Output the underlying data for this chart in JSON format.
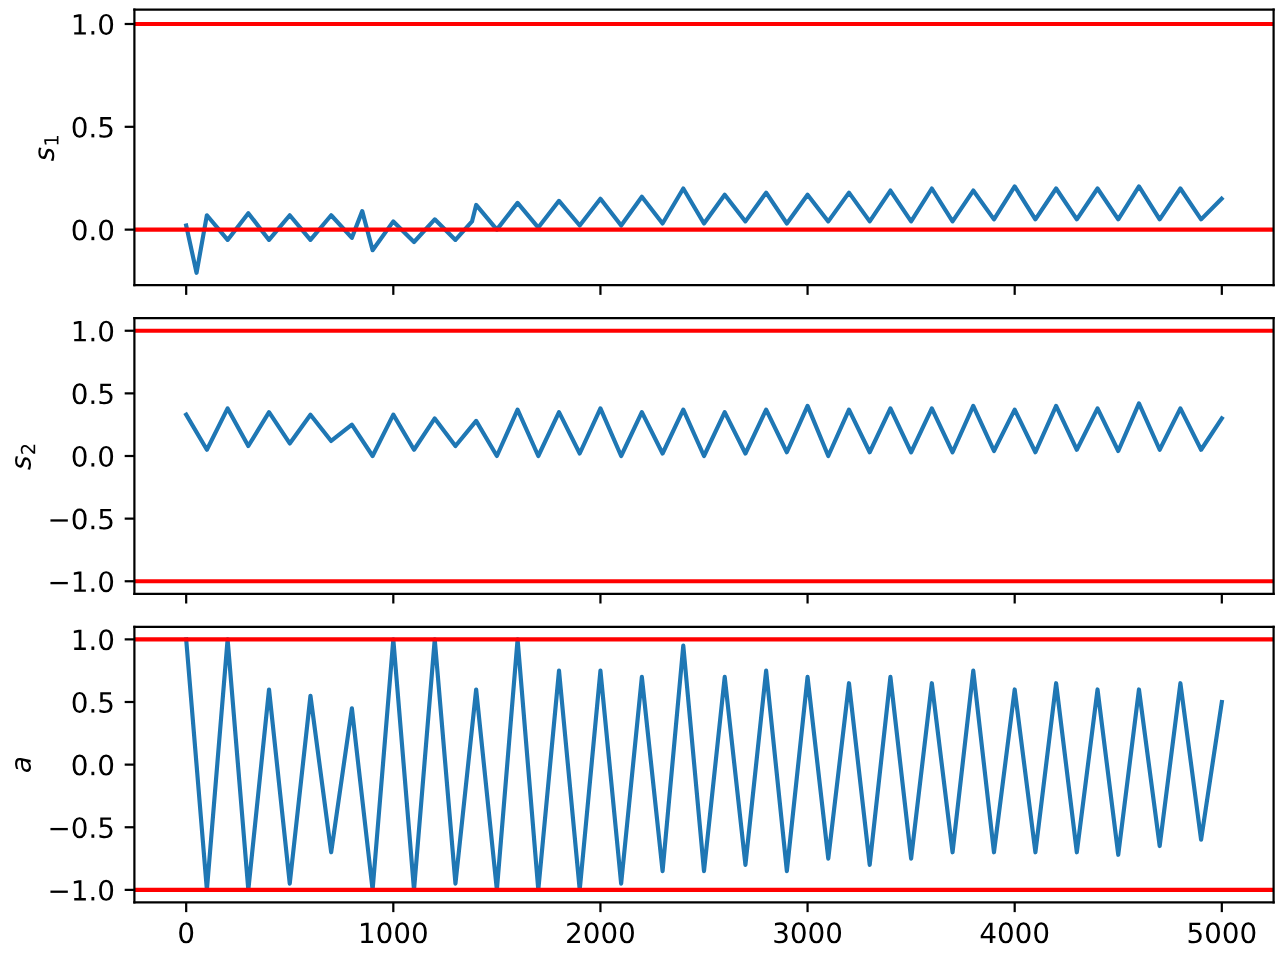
{
  "chart_data": [
    {
      "type": "line",
      "ylabel": "s$_{1}$",
      "xlim": [
        -250,
        5250
      ],
      "ylim": [
        -0.27,
        1.07
      ],
      "xticks": [
        0,
        1000,
        2000,
        3000,
        4000,
        5000
      ],
      "yticks": [
        {
          "value": 0,
          "label": "0.0"
        },
        {
          "value": 0.5,
          "label": "0.5"
        },
        {
          "value": 1,
          "label": "1.0"
        }
      ],
      "tick_labels": "y",
      "grid": false,
      "legend": false,
      "series": [
        {
          "color": "#1f77b4",
          "x": [
            0,
            50,
            100,
            200,
            300,
            400,
            500,
            600,
            700,
            800,
            850,
            900,
            1000,
            1100,
            1200,
            1300,
            1380,
            1400,
            1500,
            1600,
            1700,
            1800,
            1900,
            2000,
            2100,
            2200,
            2300,
            2400,
            2500,
            2600,
            2700,
            2800,
            2900,
            3000,
            3100,
            3200,
            3300,
            3400,
            3500,
            3600,
            3700,
            3800,
            3900,
            4000,
            4100,
            4200,
            4300,
            4400,
            4500,
            4600,
            4700,
            4800,
            4900,
            4999
          ],
          "values": [
            0.02,
            -0.21,
            0.07,
            -0.05,
            0.08,
            -0.05,
            0.07,
            -0.05,
            0.07,
            -0.04,
            0.09,
            -0.1,
            0.04,
            -0.06,
            0.05,
            -0.05,
            0.04,
            0.12,
            0.0,
            0.13,
            0.01,
            0.14,
            0.02,
            0.15,
            0.02,
            0.16,
            0.03,
            0.2,
            0.03,
            0.17,
            0.04,
            0.18,
            0.03,
            0.17,
            0.04,
            0.18,
            0.04,
            0.19,
            0.04,
            0.2,
            0.04,
            0.19,
            0.05,
            0.21,
            0.05,
            0.2,
            0.05,
            0.2,
            0.05,
            0.21,
            0.05,
            0.2,
            0.05,
            0.15
          ]
        }
      ],
      "ref_lines": [
        {
          "axis": "y",
          "value": 1,
          "color": "#ff0000"
        },
        {
          "axis": "y",
          "value": 0,
          "color": "#ff0000"
        }
      ]
    },
    {
      "type": "line",
      "ylabel": "s$_{2}$",
      "xlim": [
        -250,
        5250
      ],
      "ylim": [
        -1.1,
        1.1
      ],
      "xticks": [
        0,
        1000,
        2000,
        3000,
        4000,
        5000
      ],
      "yticks": [
        {
          "value": -1,
          "label": "−1.0"
        },
        {
          "value": -0.5,
          "label": "−0.5"
        },
        {
          "value": 0,
          "label": "0.0"
        },
        {
          "value": 0.5,
          "label": "0.5"
        },
        {
          "value": 1,
          "label": "1.0"
        }
      ],
      "tick_labels": "y",
      "grid": false,
      "legend": false,
      "series": [
        {
          "color": "#1f77b4",
          "x": [
            0,
            100,
            200,
            300,
            400,
            500,
            600,
            700,
            800,
            900,
            1000,
            1100,
            1200,
            1300,
            1400,
            1500,
            1600,
            1700,
            1800,
            1900,
            2000,
            2100,
            2200,
            2300,
            2400,
            2500,
            2600,
            2700,
            2800,
            2900,
            3000,
            3100,
            3200,
            3300,
            3400,
            3500,
            3600,
            3700,
            3800,
            3900,
            4000,
            4100,
            4200,
            4300,
            4400,
            4500,
            4600,
            4700,
            4800,
            4900,
            5000
          ],
          "values": [
            0.33,
            0.05,
            0.38,
            0.08,
            0.35,
            0.1,
            0.33,
            0.12,
            0.25,
            0.0,
            0.33,
            0.05,
            0.3,
            0.08,
            0.28,
            0.0,
            0.37,
            0.0,
            0.35,
            0.02,
            0.38,
            0.0,
            0.35,
            0.02,
            0.37,
            0.0,
            0.35,
            0.02,
            0.37,
            0.03,
            0.4,
            0.0,
            0.37,
            0.03,
            0.38,
            0.03,
            0.38,
            0.03,
            0.4,
            0.04,
            0.37,
            0.03,
            0.4,
            0.05,
            0.38,
            0.04,
            0.42,
            0.05,
            0.38,
            0.05,
            0.3
          ]
        }
      ],
      "ref_lines": [
        {
          "axis": "y",
          "value": 1,
          "color": "#ff0000"
        },
        {
          "axis": "y",
          "value": -1,
          "color": "#ff0000"
        }
      ]
    },
    {
      "type": "line",
      "ylabel": "a",
      "xlim": [
        -250,
        5250
      ],
      "ylim": [
        -1.1,
        1.1
      ],
      "xticks": [
        0,
        1000,
        2000,
        3000,
        4000,
        5000
      ],
      "yticks": [
        {
          "value": -1,
          "label": "−1.0"
        },
        {
          "value": -0.5,
          "label": "−0.5"
        },
        {
          "value": 0,
          "label": "0.0"
        },
        {
          "value": 0.5,
          "label": "0.5"
        },
        {
          "value": 1,
          "label": "1.0"
        }
      ],
      "grid": false,
      "legend": false,
      "series": [
        {
          "color": "#1f77b4",
          "x": [
            0,
            100,
            200,
            300,
            400,
            500,
            600,
            700,
            800,
            900,
            1000,
            1100,
            1200,
            1300,
            1400,
            1500,
            1600,
            1700,
            1800,
            1900,
            2000,
            2100,
            2200,
            2300,
            2400,
            2500,
            2600,
            2700,
            2800,
            2900,
            3000,
            3100,
            3200,
            3300,
            3400,
            3500,
            3600,
            3700,
            3800,
            3900,
            4000,
            4100,
            4200,
            4300,
            4400,
            4500,
            4600,
            4700,
            4800,
            4900,
            5000
          ],
          "values": [
            1.0,
            -1.0,
            1.0,
            -1.0,
            0.6,
            -0.95,
            0.55,
            -0.7,
            0.45,
            -1.0,
            1.0,
            -1.0,
            1.0,
            -0.95,
            0.6,
            -1.0,
            1.0,
            -1.0,
            0.75,
            -1.0,
            0.75,
            -0.95,
            0.7,
            -0.85,
            0.95,
            -0.85,
            0.7,
            -0.8,
            0.75,
            -0.85,
            0.7,
            -0.75,
            0.65,
            -0.8,
            0.7,
            -0.75,
            0.65,
            -0.7,
            0.75,
            -0.7,
            0.6,
            -0.7,
            0.65,
            -0.7,
            0.6,
            -0.72,
            0.6,
            -0.65,
            0.65,
            -0.6,
            0.5
          ]
        }
      ],
      "ref_lines": [
        {
          "axis": "y",
          "value": 1,
          "color": "#ff0000"
        },
        {
          "axis": "y",
          "value": -1,
          "color": "#ff0000"
        }
      ]
    }
  ]
}
